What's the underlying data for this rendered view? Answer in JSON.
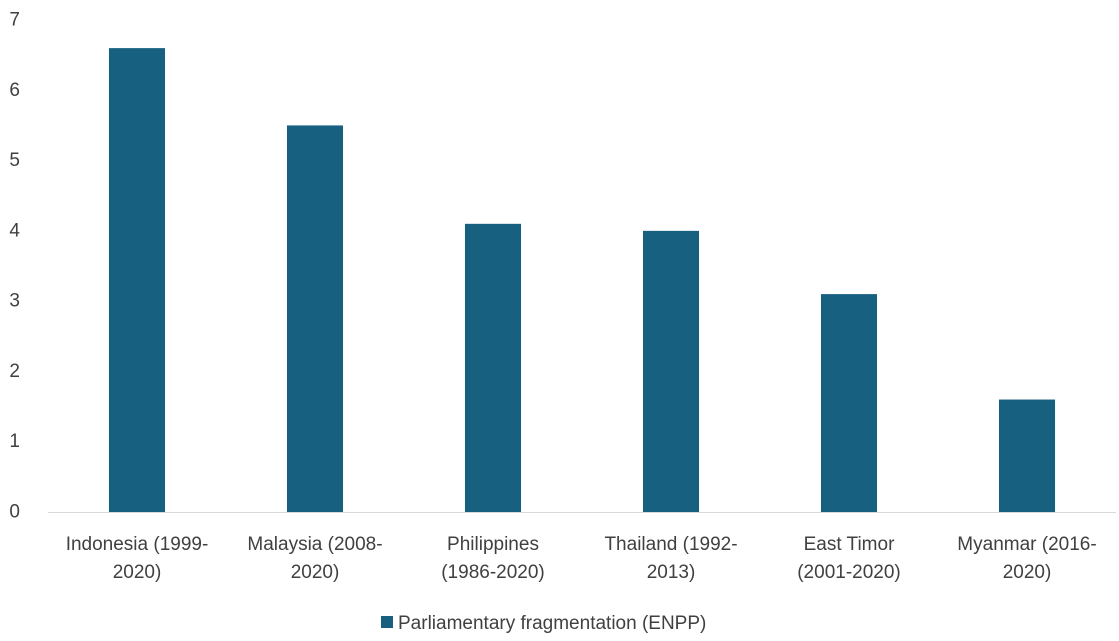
{
  "chart_data": {
    "type": "bar",
    "categories": [
      [
        "Indonesia (1999-",
        "2020)"
      ],
      [
        "Malaysia (2008-",
        "2020)"
      ],
      [
        "Philippines",
        "(1986-2020)"
      ],
      [
        "Thailand (1992-",
        "2013)"
      ],
      [
        "East Timor",
        "(2001-2020)"
      ],
      [
        "Myanmar (2016-",
        "2020)"
      ]
    ],
    "series": [
      {
        "name": "Parliamentary fragmentation (ENPP)",
        "values": [
          6.6,
          5.5,
          4.1,
          4.0,
          3.1,
          1.6
        ],
        "color": "#17607f"
      }
    ],
    "ylim": [
      0,
      7
    ],
    "yticks": [
      "0",
      "1",
      "2",
      "3",
      "4",
      "5",
      "6",
      "7"
    ],
    "grid": false,
    "legend": "bottom-center"
  }
}
